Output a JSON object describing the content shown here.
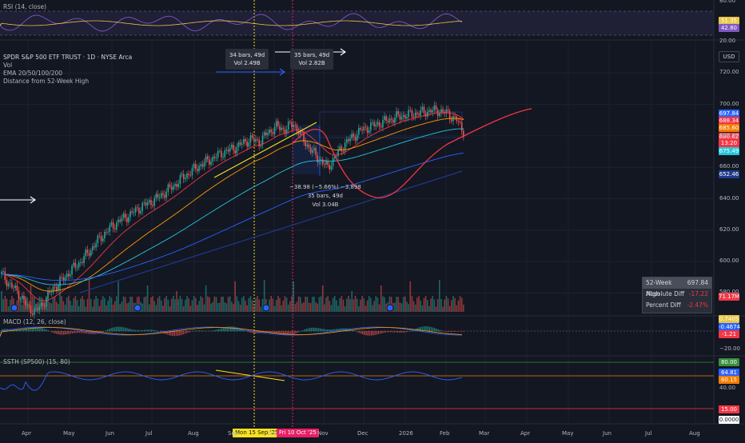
{
  "header": {
    "symbol": "SPDR S&P 500 ETF TRUST · 1D · NYSE Arca",
    "indicators": [
      "Vol",
      "EMA 20/50/100/200",
      "Distance from 52-Week High"
    ],
    "currency": "USD"
  },
  "panes": {
    "rsi_title": "RSI (14, close)",
    "macd_title": "MACD (12, 26, close)",
    "ssth_title": "SSTH (SP500) (15, 80)"
  },
  "measurements": [
    {
      "bars": "34 bars, 49d",
      "vol": "Vol 2.49B"
    },
    {
      "bars": "35 bars, 49d",
      "vol": "Vol 2.82B"
    },
    {
      "change": "−38.98 (−5.66%) −3,898",
      "bars": "35 bars, 49d",
      "vol": "Vol 3.04B"
    }
  ],
  "legend_52w": {
    "header_label": "52-Week High",
    "header_value": "697.84",
    "abs_label": "Absolute Diff",
    "abs_value": "-17.22",
    "pct_label": "Percent Diff",
    "pct_value": "-2.47%"
  },
  "date_pills": [
    "Mon 15 Sep '25",
    "Fri 10 Oct '25"
  ],
  "price_tags": [
    {
      "value": "697.84",
      "color": "#2962ff"
    },
    {
      "value": "688.34",
      "color": "#f23645"
    },
    {
      "value": "685.60",
      "color": "#f57c00"
    },
    {
      "value": "680.62",
      "color": "#f23645"
    },
    {
      "value": "13:20",
      "color": "#f23645"
    },
    {
      "value": "675.49",
      "color": "#26c6da"
    },
    {
      "value": "652.46",
      "color": "#1e3a8a"
    },
    {
      "value": "71.17M",
      "color": "#f23645"
    }
  ],
  "rsi_tags": [
    {
      "value": "51.35",
      "color": "#e8c547"
    },
    {
      "value": "42.80",
      "color": "#7e57c2"
    }
  ],
  "macd_tags": [
    {
      "value": "0.7405",
      "color": "#e8c547"
    },
    {
      "value": "-0.4674",
      "color": "#2962ff"
    },
    {
      "value": "-1.21",
      "color": "#f23645"
    }
  ],
  "ssth_tags": [
    {
      "value": "80.00",
      "color": "#388e3c"
    },
    {
      "value": "64.81",
      "color": "#2962ff"
    },
    {
      "value": "60.15",
      "color": "#f57c00"
    },
    {
      "value": "15.00",
      "color": "#f23645"
    },
    {
      "value": "0.0000",
      "color": "#ffffff"
    }
  ],
  "colors": {
    "background": "#131722",
    "up": "#26a69a",
    "down": "#ef5350",
    "ema20": "#f23645",
    "ema50": "#ff9800",
    "ema100": "#26c6da",
    "ema200": "#2962ff"
  },
  "chart_data": [
    {
      "type": "line",
      "pane": "price",
      "x_ticks": [
        "Apr",
        "May",
        "Jun",
        "Jul",
        "Aug",
        "Sep",
        "Oct",
        "Nov",
        "Dec",
        "2026",
        "Feb",
        "Mar",
        "Apr",
        "May",
        "Jun",
        "Jul",
        "Aug"
      ],
      "y_ticks": [
        580,
        600,
        620,
        640,
        660,
        680,
        700,
        720
      ],
      "ylim": [
        567,
        740
      ],
      "close_path": [
        [
          0,
          592
        ],
        [
          5,
          585
        ],
        [
          10,
          580
        ],
        [
          15,
          571
        ],
        [
          20,
          568
        ],
        [
          25,
          575
        ],
        [
          30,
          583
        ],
        [
          35,
          588
        ],
        [
          40,
          594
        ],
        [
          45,
          599
        ],
        [
          50,
          605
        ],
        [
          55,
          612
        ],
        [
          60,
          618
        ],
        [
          65,
          623
        ],
        [
          70,
          627
        ],
        [
          75,
          630
        ],
        [
          80,
          634
        ],
        [
          85,
          637
        ],
        [
          90,
          640
        ],
        [
          95,
          644
        ],
        [
          100,
          648
        ],
        [
          105,
          653
        ],
        [
          110,
          657
        ],
        [
          115,
          661
        ],
        [
          120,
          664
        ],
        [
          125,
          667
        ],
        [
          130,
          670
        ],
        [
          135,
          672
        ],
        [
          140,
          675
        ],
        [
          145,
          678
        ],
        [
          150,
          676
        ],
        [
          155,
          682
        ],
        [
          160,
          686
        ],
        [
          165,
          684
        ],
        [
          170,
          688
        ],
        [
          175,
          679
        ],
        [
          180,
          671
        ],
        [
          185,
          665
        ],
        [
          190,
          660
        ],
        [
          195,
          668
        ],
        [
          200,
          675
        ],
        [
          205,
          680
        ],
        [
          210,
          684
        ],
        [
          215,
          686
        ],
        [
          220,
          688
        ],
        [
          225,
          690
        ],
        [
          230,
          692
        ],
        [
          235,
          693
        ],
        [
          240,
          694
        ],
        [
          245,
          695
        ],
        [
          250,
          696
        ],
        [
          255,
          696
        ],
        [
          260,
          694
        ],
        [
          265,
          690
        ],
        [
          270,
          681
        ]
      ],
      "series": [
        {
          "name": "EMA 20/50/100/200",
          "values_label": "EMA 20"
        },
        {
          "name": "Distance from 52-Week High"
        }
      ]
    }
  ]
}
